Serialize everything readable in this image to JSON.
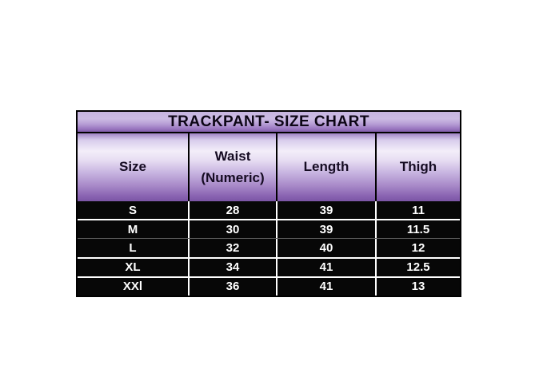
{
  "page": {
    "background": "#ffffff"
  },
  "table": {
    "title": "TRACKPANT- SIZE CHART",
    "header": {
      "size": "Size",
      "waist_line1": "Waist",
      "waist_line2": "(Numeric)",
      "length": "Length",
      "thigh": "Thigh"
    },
    "colors": {
      "border": "#000000",
      "title_gradient_top": "#c7b5e0",
      "title_gradient_bottom": "#7e5aa8",
      "header_gradient_top": "#9f82c4",
      "header_gradient_light": "#f3eef9",
      "header_gradient_bottom": "#7b55a5",
      "header_text": "#150b22",
      "body_background": "#070707",
      "body_text": "#ffffff",
      "row_separator": "#ffffff"
    }
  },
  "chart_data": {
    "type": "table",
    "title": "TRACKPANT- SIZE CHART",
    "columns": [
      "Size",
      "Waist (Numeric)",
      "Length",
      "Thigh"
    ],
    "rows": [
      [
        "S",
        "28",
        "39",
        "11"
      ],
      [
        "M",
        "30",
        "39",
        "11.5"
      ],
      [
        "L",
        "32",
        "40",
        "12"
      ],
      [
        "XL",
        "34",
        "41",
        "12.5"
      ],
      [
        "XXl",
        "36",
        "41",
        "13"
      ]
    ]
  }
}
